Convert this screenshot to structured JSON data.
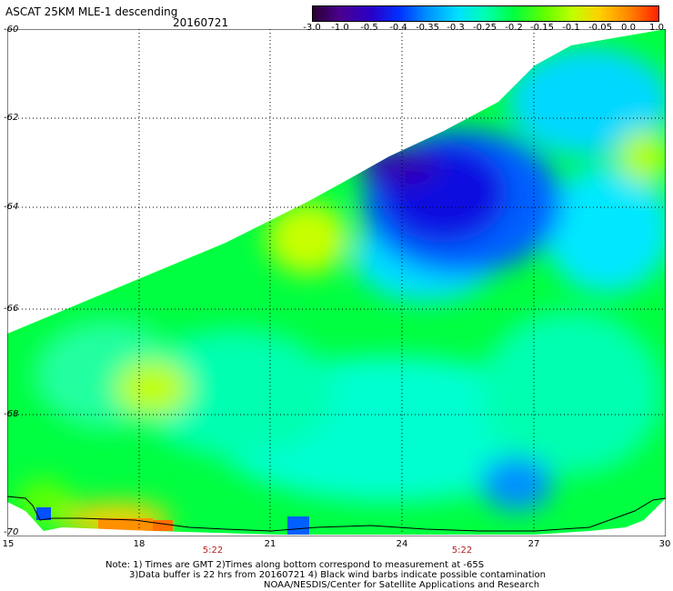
{
  "title": "ASCAT 25KM MLE-1 descending",
  "date": "20160721",
  "colorbar": {
    "labels": [
      "-3.0",
      "-1.0",
      "-0.5",
      "-0.4",
      "-0.35",
      "-0.3",
      "-0.25",
      "-0.2",
      "-0.15",
      "-0.1",
      "-0.05",
      "0.0",
      "1.0"
    ],
    "colors": [
      "#2a0030",
      "#4a0090",
      "#2a00c8",
      "#0030ff",
      "#0090ff",
      "#00e0ff",
      "#00ffb0",
      "#00ff40",
      "#60ff00",
      "#c0ff00",
      "#ffd000",
      "#ff8000",
      "#ff2000"
    ]
  },
  "lat_labels": [
    "-60",
    "-62",
    "-64",
    "-66",
    "-68",
    "-70"
  ],
  "lon_labels": [
    "15",
    "18",
    "21",
    "24",
    "27",
    "30"
  ],
  "time_labels": [
    "5:22",
    "5:22"
  ],
  "notes": [
    "Note: 1) Times are GMT 2)Times along bottom correspond to measurement at -65S",
    "3)Data buffer is 22 hrs from 20160721 4) Black wind barbs indicate possible contamination",
    "NOAA/NESDIS/Center for Satellite Applications and Research"
  ]
}
